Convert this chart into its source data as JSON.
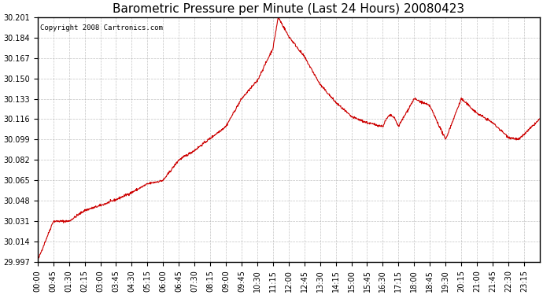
{
  "title": "Barometric Pressure per Minute (Last 24 Hours) 20080423",
  "copyright": "Copyright 2008 Cartronics.com",
  "line_color": "#cc0000",
  "background_color": "#ffffff",
  "plot_bg_color": "#ffffff",
  "grid_color": "#aaaaaa",
  "ylim": [
    29.997,
    30.201
  ],
  "yticks": [
    29.997,
    30.014,
    30.031,
    30.048,
    30.065,
    30.082,
    30.099,
    30.116,
    30.133,
    30.15,
    30.167,
    30.184,
    30.201
  ],
  "xtick_labels": [
    "00:00",
    "00:45",
    "01:30",
    "02:15",
    "03:00",
    "03:45",
    "04:30",
    "05:15",
    "06:00",
    "06:45",
    "07:30",
    "08:15",
    "09:00",
    "09:45",
    "10:30",
    "11:15",
    "12:00",
    "12:45",
    "13:30",
    "14:15",
    "15:00",
    "15:45",
    "16:30",
    "17:15",
    "18:00",
    "18:45",
    "19:30",
    "20:15",
    "21:00",
    "21:45",
    "22:30",
    "23:15"
  ]
}
